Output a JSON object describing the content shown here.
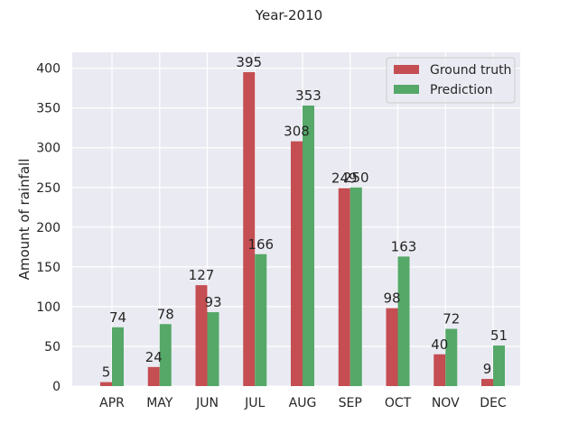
{
  "chart_data": {
    "type": "bar",
    "title": "Year-2010",
    "xlabel": "",
    "ylabel": "Amount of rainfall",
    "categories": [
      "APR",
      "MAY",
      "JUN",
      "JUL",
      "AUG",
      "SEP",
      "OCT",
      "NOV",
      "DEC"
    ],
    "series": [
      {
        "name": "Ground truth",
        "color": "#c44e52",
        "values": [
          5,
          24,
          127,
          395,
          308,
          249,
          98,
          40,
          9
        ]
      },
      {
        "name": "Prediction",
        "color": "#55a868",
        "values": [
          74,
          78,
          93,
          166,
          353,
          250,
          163,
          72,
          51
        ]
      }
    ],
    "ylim": [
      0,
      420
    ],
    "yticks": [
      0,
      50,
      100,
      150,
      200,
      250,
      300,
      350,
      400
    ],
    "grid": true,
    "legend_position": "top-right"
  }
}
